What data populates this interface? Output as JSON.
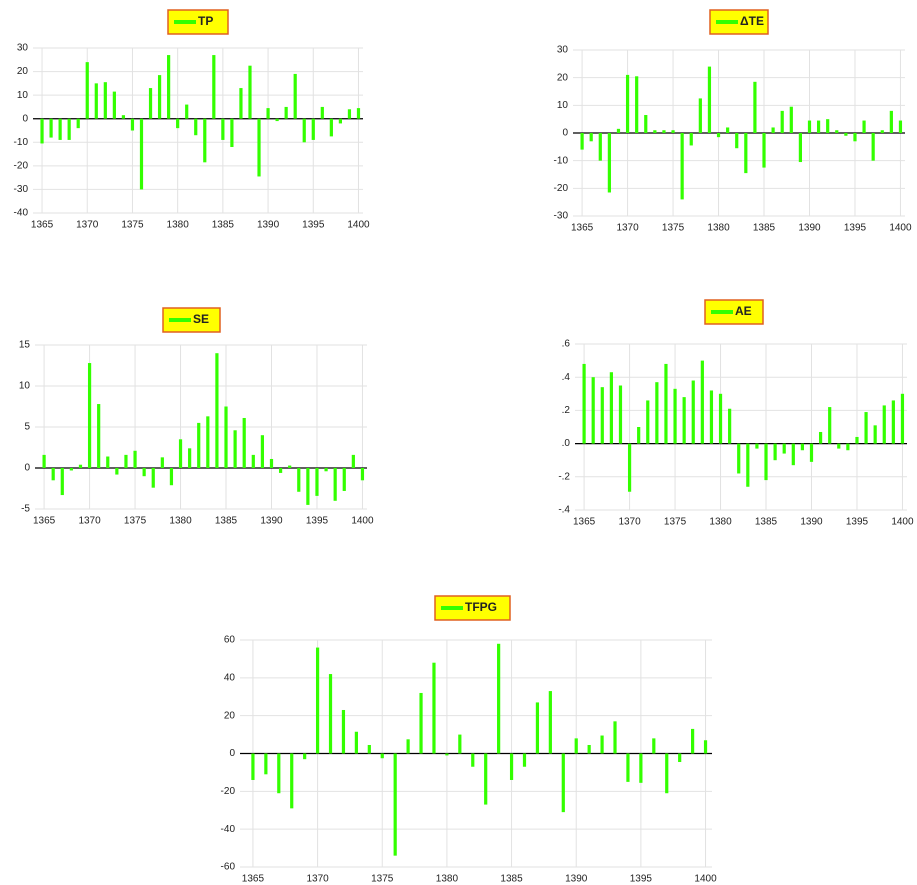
{
  "chart_data": [
    {
      "type": "bar",
      "series": [
        {
          "name": "TP",
          "color": "#33ff00",
          "values": [
            -10.5,
            -8,
            -9,
            -9,
            -4,
            24,
            15,
            15.5,
            11.5,
            1.5,
            -5,
            -30,
            13,
            18.5,
            27,
            -4,
            6,
            -7,
            -18.5,
            27,
            -9,
            -12,
            13,
            22.5,
            -24.5,
            4.5,
            -1,
            5,
            19,
            -10,
            -9,
            5,
            -7.5,
            -2,
            4,
            4.5
          ]
        }
      ],
      "x": [
        1365,
        1366,
        1367,
        1368,
        1369,
        1370,
        1371,
        1372,
        1373,
        1374,
        1375,
        1376,
        1377,
        1378,
        1379,
        1380,
        1381,
        1382,
        1383,
        1384,
        1385,
        1386,
        1387,
        1388,
        1389,
        1390,
        1391,
        1392,
        1393,
        1394,
        1395,
        1396,
        1397,
        1398,
        1399,
        1400
      ],
      "xlim": [
        1364,
        1400.5
      ],
      "xticks": [
        1365,
        1370,
        1375,
        1380,
        1385,
        1390,
        1395,
        1400
      ],
      "ylim": [
        -40,
        30
      ],
      "yticks": [
        -40,
        -30,
        -20,
        -10,
        0,
        10,
        20,
        30
      ],
      "grid": true
    },
    {
      "type": "bar",
      "series": [
        {
          "name": "ΔTE",
          "color": "#33ff00",
          "values": [
            -6,
            -3,
            -10,
            -21.5,
            1.5,
            21,
            20.5,
            6.5,
            1,
            1,
            1,
            -24,
            -4.5,
            12.5,
            24,
            -1.5,
            2,
            -5.5,
            -14.5,
            18.5,
            -12.5,
            2,
            8,
            9.5,
            -10.5,
            4.5,
            4.5,
            5,
            1,
            -1,
            -3,
            4.5,
            -10,
            1,
            8,
            4.5
          ]
        }
      ],
      "x": [
        1365,
        1366,
        1367,
        1368,
        1369,
        1370,
        1371,
        1372,
        1373,
        1374,
        1375,
        1376,
        1377,
        1378,
        1379,
        1380,
        1381,
        1382,
        1383,
        1384,
        1385,
        1386,
        1387,
        1388,
        1389,
        1390,
        1391,
        1392,
        1393,
        1394,
        1395,
        1396,
        1397,
        1398,
        1399,
        1400
      ],
      "xlim": [
        1364,
        1400.5
      ],
      "xticks": [
        1365,
        1370,
        1375,
        1380,
        1385,
        1390,
        1395,
        1400
      ],
      "ylim": [
        -30,
        30
      ],
      "yticks": [
        -30,
        -20,
        -10,
        0,
        10,
        20,
        30
      ],
      "grid": true
    },
    {
      "type": "bar",
      "series": [
        {
          "name": "SE",
          "color": "#33ff00",
          "values": [
            1.6,
            -1.5,
            -3.3,
            -0.3,
            0.4,
            12.8,
            7.8,
            1.4,
            -0.8,
            1.6,
            2.1,
            -1,
            -2.4,
            1.3,
            -2.1,
            3.5,
            2.4,
            5.5,
            6.3,
            14,
            7.5,
            4.6,
            6.1,
            1.6,
            4,
            1.1,
            -0.6,
            0.3,
            -2.9,
            -4.5,
            -3.4,
            -0.4,
            -4,
            -2.8,
            1.6,
            -1.5
          ]
        }
      ],
      "x": [
        1365,
        1366,
        1367,
        1368,
        1369,
        1370,
        1371,
        1372,
        1373,
        1374,
        1375,
        1376,
        1377,
        1378,
        1379,
        1380,
        1381,
        1382,
        1383,
        1384,
        1385,
        1386,
        1387,
        1388,
        1389,
        1390,
        1391,
        1392,
        1393,
        1394,
        1395,
        1396,
        1397,
        1398,
        1399,
        1400
      ],
      "xlim": [
        1364,
        1400.5
      ],
      "xticks": [
        1365,
        1370,
        1375,
        1380,
        1385,
        1390,
        1395,
        1400
      ],
      "ylim": [
        -5,
        15
      ],
      "yticks": [
        -5,
        0,
        5,
        10,
        15
      ],
      "grid": true
    },
    {
      "type": "bar",
      "series": [
        {
          "name": "AE",
          "color": "#33ff00",
          "values": [
            0.48,
            0.4,
            0.34,
            0.43,
            0.35,
            -0.29,
            0.1,
            0.26,
            0.37,
            0.48,
            0.33,
            0.28,
            0.38,
            0.5,
            0.32,
            0.3,
            0.21,
            -0.18,
            -0.26,
            -0.03,
            -0.22,
            -0.1,
            -0.06,
            -0.13,
            -0.04,
            -0.11,
            0.07,
            0.22,
            -0.03,
            -0.04,
            0.04,
            0.19,
            0.11,
            0.23,
            0.26,
            0.3
          ]
        }
      ],
      "x": [
        1365,
        1366,
        1367,
        1368,
        1369,
        1370,
        1371,
        1372,
        1373,
        1374,
        1375,
        1376,
        1377,
        1378,
        1379,
        1380,
        1381,
        1382,
        1383,
        1384,
        1385,
        1386,
        1387,
        1388,
        1389,
        1390,
        1391,
        1392,
        1393,
        1394,
        1395,
        1396,
        1397,
        1398,
        1399,
        1400
      ],
      "xlim": [
        1364,
        1400.5
      ],
      "xticks": [
        1365,
        1370,
        1375,
        1380,
        1385,
        1390,
        1395,
        1400
      ],
      "ylim": [
        -0.4,
        0.6
      ],
      "yticks": [
        {
          "value": -0.4,
          "label": "-.4"
        },
        {
          "value": -0.2,
          "label": "-.2"
        },
        {
          "value": 0,
          "label": ".0"
        },
        {
          "value": 0.2,
          "label": ".2"
        },
        {
          "value": 0.4,
          "label": ".4"
        },
        {
          "value": 0.6,
          "label": ".6"
        }
      ],
      "grid": true
    },
    {
      "type": "bar",
      "series": [
        {
          "name": "TFPG",
          "color": "#33ff00",
          "values": [
            -14,
            -11,
            -21,
            -29,
            -3,
            56,
            42,
            23,
            11.5,
            4.5,
            -2.5,
            -54,
            7.5,
            32,
            48,
            -1,
            10,
            -7,
            -27,
            58,
            -14,
            -7,
            27,
            33,
            -31,
            8,
            4.5,
            9.5,
            17,
            -15,
            -15.5,
            8,
            -21,
            -4.5,
            13,
            7
          ]
        }
      ],
      "x": [
        1365,
        1366,
        1367,
        1368,
        1369,
        1370,
        1371,
        1372,
        1373,
        1374,
        1375,
        1376,
        1377,
        1378,
        1379,
        1380,
        1381,
        1382,
        1383,
        1384,
        1385,
        1386,
        1387,
        1388,
        1389,
        1390,
        1391,
        1392,
        1393,
        1394,
        1395,
        1396,
        1397,
        1398,
        1399,
        1400
      ],
      "xlim": [
        1364,
        1400.5
      ],
      "xticks": [
        1365,
        1370,
        1375,
        1380,
        1385,
        1390,
        1395,
        1400
      ],
      "ylim": [
        -60,
        60
      ],
      "yticks": [
        -60,
        -40,
        -20,
        0,
        20,
        40,
        60
      ],
      "grid": true
    }
  ]
}
